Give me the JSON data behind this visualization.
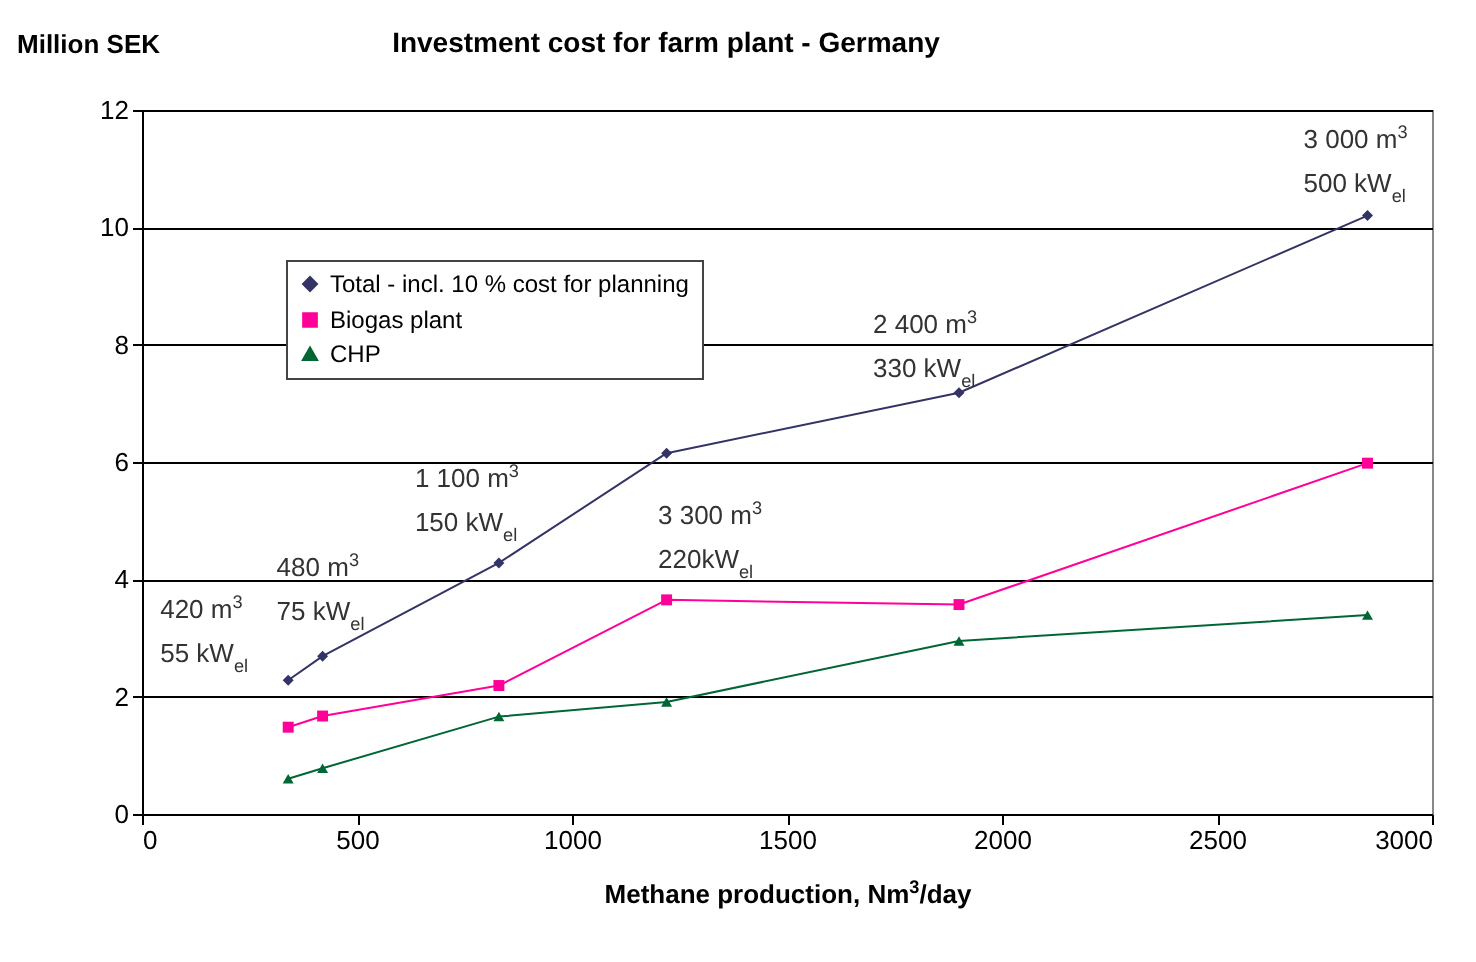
{
  "chart_data": {
    "type": "line",
    "title": "Investment cost for farm plant - Germany",
    "xlabel": "Methane production, Nm$^{3}$/day",
    "ylabel": "Million SEK",
    "x": [
      340,
      420,
      830,
      1220,
      1900,
      2850
    ],
    "series": [
      {
        "name": "Total - incl. 10 % cost for planning",
        "color": "#333366",
        "marker": "diamond",
        "values": [
          2.28,
          2.69,
          4.28,
          6.15,
          7.18,
          10.2
        ]
      },
      {
        "name": "Biogas plant",
        "color": "#ff0099",
        "marker": "square",
        "values": [
          1.48,
          1.67,
          2.19,
          3.65,
          3.57,
          5.98
        ]
      },
      {
        "name": "CHP",
        "color": "#006633",
        "marker": "triangle",
        "values": [
          0.6,
          0.78,
          1.66,
          1.91,
          2.95,
          3.39
        ]
      }
    ],
    "xlim": [
      0,
      3000
    ],
    "xticks": [
      0,
      500,
      1000,
      1500,
      2000,
      2500,
      3000
    ],
    "ylim": [
      0,
      12
    ],
    "yticks": [
      0,
      2,
      4,
      6,
      8,
      10,
      12
    ],
    "grid": "y",
    "legend": "top left",
    "line_style": "solid",
    "annotations": [
      {
        "text": "420 m$^{3}$",
        "x": 340,
        "y": 2.28
      },
      {
        "text": "55 kW$_{el}$",
        "x": 340,
        "y": 2.28
      },
      {
        "text": "480 m$^{3}$",
        "x": 420,
        "y": 2.69
      },
      {
        "text": "75 kW$_{el}$",
        "x": 420,
        "y": 2.69
      },
      {
        "text": "1 100 m$^{3}$",
        "x": 830,
        "y": 4.28
      },
      {
        "text": "150 kW$_{el}$",
        "x": 830,
        "y": 4.28
      },
      "3 300 m$^{3}$",
      "220kW$_{el}$",
      {
        "text": "2 400 m$^{3}$",
        "x": 1900,
        "y": 7.18
      },
      {
        "text": "330 kW$_{el}$",
        "x": 1900,
        "y": 7.18
      },
      {
        "text": "3 000 m$^{3}$",
        "x": 2850,
        "y": 10.2
      },
      {
        "text": "500 kW$_{el}$",
        "x": 2850,
        "y": 10.2
      }
    ]
  }
}
